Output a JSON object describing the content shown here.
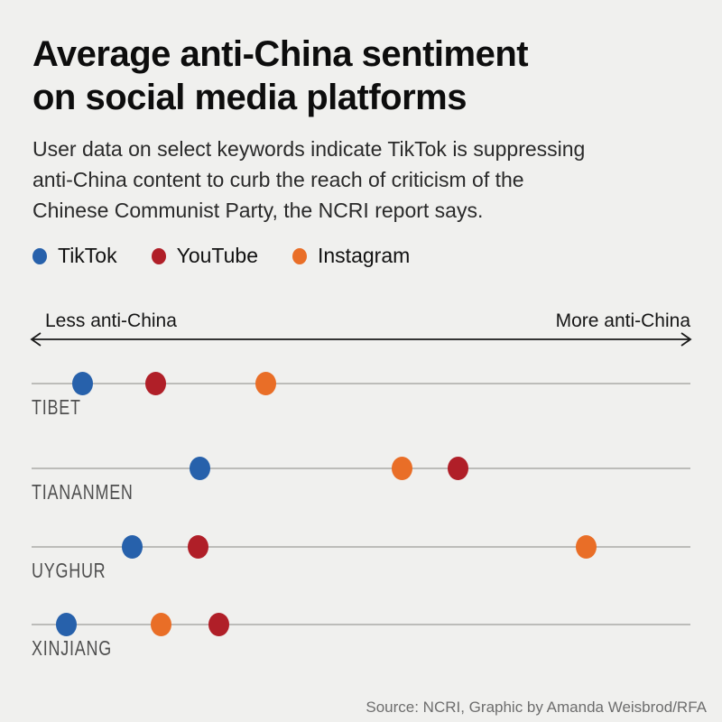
{
  "page": {
    "background": "#f0f0ee",
    "title": "Average anti-China sentiment\non social media platforms",
    "subtitle": "User data on select keywords indicate TikTok is suppressing\nanti-China content to curb the reach of criticism of the\nChinese Communist Party, the NCRI report says.",
    "source": "Source: NCRI, Graphic by Amanda Weisbrod/RFA"
  },
  "axis": {
    "left_label": "Less anti-China",
    "right_label": "More anti-China"
  },
  "chart_data": {
    "type": "scatter",
    "title": "Average anti-China sentiment on social media platforms",
    "subtitle": "User data on select keywords indicate TikTok is suppressing anti-China content to curb the reach of criticism of the Chinese Communist Party, the NCRI report says.",
    "xlabel_left": "Less anti-China",
    "xlabel_right": "More anti-China",
    "x_range": [
      0,
      1
    ],
    "grid": false,
    "legend_position": "top",
    "categories": [
      "TIBET",
      "TIANANMEN",
      "UYGHUR",
      "XINJIANG"
    ],
    "series": [
      {
        "name": "TikTok",
        "color": "#2761ab",
        "values": [
          0.078,
          0.255,
          0.153,
          0.053
        ]
      },
      {
        "name": "YouTube",
        "color": "#b01f28",
        "values": [
          0.188,
          0.647,
          0.253,
          0.284
        ]
      },
      {
        "name": "Instagram",
        "color": "#e96e27",
        "values": [
          0.355,
          0.562,
          0.842,
          0.197
        ]
      }
    ],
    "source": "Source: NCRI, Graphic by Amanda Weisbrod/RFA"
  }
}
